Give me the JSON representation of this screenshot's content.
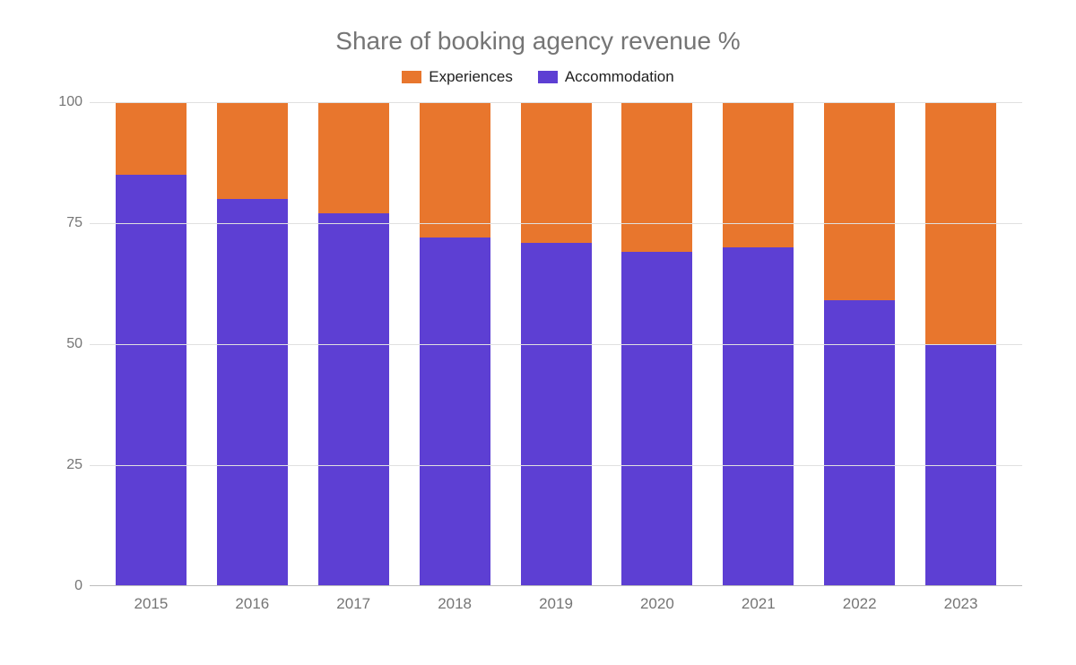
{
  "chart": {
    "type": "stacked-bar",
    "title": "Share of booking agency revenue %",
    "title_fontsize": 28,
    "title_color": "#757575",
    "background_color": "#ffffff",
    "grid_color": "#e0e0e0",
    "axis_label_color": "#757575",
    "axis_label_fontsize": 16,
    "bar_width": 0.7,
    "ylim": [
      0,
      100
    ],
    "yticks": [
      0,
      25,
      50,
      75,
      100
    ],
    "categories": [
      "2015",
      "2016",
      "2017",
      "2018",
      "2019",
      "2020",
      "2021",
      "2022",
      "2023"
    ],
    "series": [
      {
        "name": "Experiences",
        "color": "#e8762d",
        "values": [
          15,
          20,
          23,
          28,
          29,
          31,
          30,
          41,
          50
        ]
      },
      {
        "name": "Accommodation",
        "color": "#5d3fd3",
        "values": [
          85,
          80,
          77,
          72,
          71,
          69,
          70,
          59,
          50
        ]
      }
    ],
    "legend": {
      "position": "top-center",
      "items": [
        {
          "label": "Experiences",
          "color": "#e8762d"
        },
        {
          "label": "Accommodation",
          "color": "#5d3fd3"
        }
      ]
    }
  }
}
